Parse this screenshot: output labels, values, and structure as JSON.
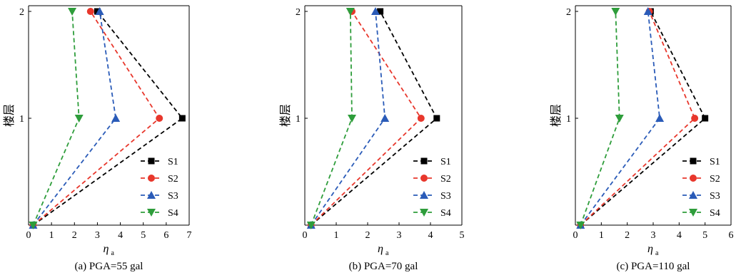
{
  "chart_data": [
    {
      "type": "line",
      "caption": "(a) PGA=55 gal",
      "xlabel": "η",
      "xlabel_sub": "a",
      "ylabel": "楼层",
      "xlim": [
        0,
        7
      ],
      "xticks": [
        "0",
        "1",
        "2",
        "3",
        "4",
        "5",
        "6",
        "7"
      ],
      "yticks": [
        "1",
        "2"
      ],
      "y": [
        0,
        1,
        2
      ],
      "legend_position": "lower-right",
      "series": [
        {
          "name": "S1",
          "color": "#000000",
          "marker": "square",
          "values": [
            0.2,
            6.7,
            3.0
          ]
        },
        {
          "name": "S2",
          "color": "#e8372c",
          "marker": "circle",
          "values": [
            0.2,
            5.7,
            2.7
          ]
        },
        {
          "name": "S3",
          "color": "#2a5bb8",
          "marker": "triangle-up",
          "values": [
            0.2,
            3.8,
            3.1
          ]
        },
        {
          "name": "S4",
          "color": "#2e9d3b",
          "marker": "triangle-down",
          "values": [
            0.2,
            2.2,
            1.9
          ]
        }
      ]
    },
    {
      "type": "line",
      "caption": "(b) PGA=70 gal",
      "xlabel": "η",
      "xlabel_sub": "a",
      "ylabel": "楼层",
      "xlim": [
        0,
        5
      ],
      "xticks": [
        "0",
        "1",
        "2",
        "3",
        "4",
        "5"
      ],
      "yticks": [
        "1",
        "2"
      ],
      "y": [
        0,
        1,
        2
      ],
      "legend_position": "lower-right",
      "series": [
        {
          "name": "S1",
          "color": "#000000",
          "marker": "square",
          "values": [
            0.2,
            4.2,
            2.4
          ]
        },
        {
          "name": "S2",
          "color": "#e8372c",
          "marker": "circle",
          "values": [
            0.2,
            3.7,
            1.5
          ]
        },
        {
          "name": "S3",
          "color": "#2a5bb8",
          "marker": "triangle-up",
          "values": [
            0.2,
            2.55,
            2.25
          ]
        },
        {
          "name": "S4",
          "color": "#2e9d3b",
          "marker": "triangle-down",
          "values": [
            0.2,
            1.5,
            1.45
          ]
        }
      ]
    },
    {
      "type": "line",
      "caption": "(c) PGA=110 gal",
      "xlabel": "η",
      "xlabel_sub": "a",
      "ylabel": "楼层",
      "xlim": [
        0,
        6
      ],
      "xticks": [
        "0",
        "1",
        "2",
        "3",
        "4",
        "5",
        "6"
      ],
      "yticks": [
        "1",
        "2"
      ],
      "y": [
        0,
        1,
        2
      ],
      "legend_position": "lower-right",
      "series": [
        {
          "name": "S1",
          "color": "#000000",
          "marker": "square",
          "values": [
            0.2,
            5.0,
            2.9
          ]
        },
        {
          "name": "S2",
          "color": "#e8372c",
          "marker": "circle",
          "values": [
            0.2,
            4.6,
            2.85
          ]
        },
        {
          "name": "S3",
          "color": "#2a5bb8",
          "marker": "triangle-up",
          "values": [
            0.2,
            3.25,
            2.8
          ]
        },
        {
          "name": "S4",
          "color": "#2e9d3b",
          "marker": "triangle-down",
          "values": [
            0.2,
            1.7,
            1.55
          ]
        }
      ]
    }
  ]
}
